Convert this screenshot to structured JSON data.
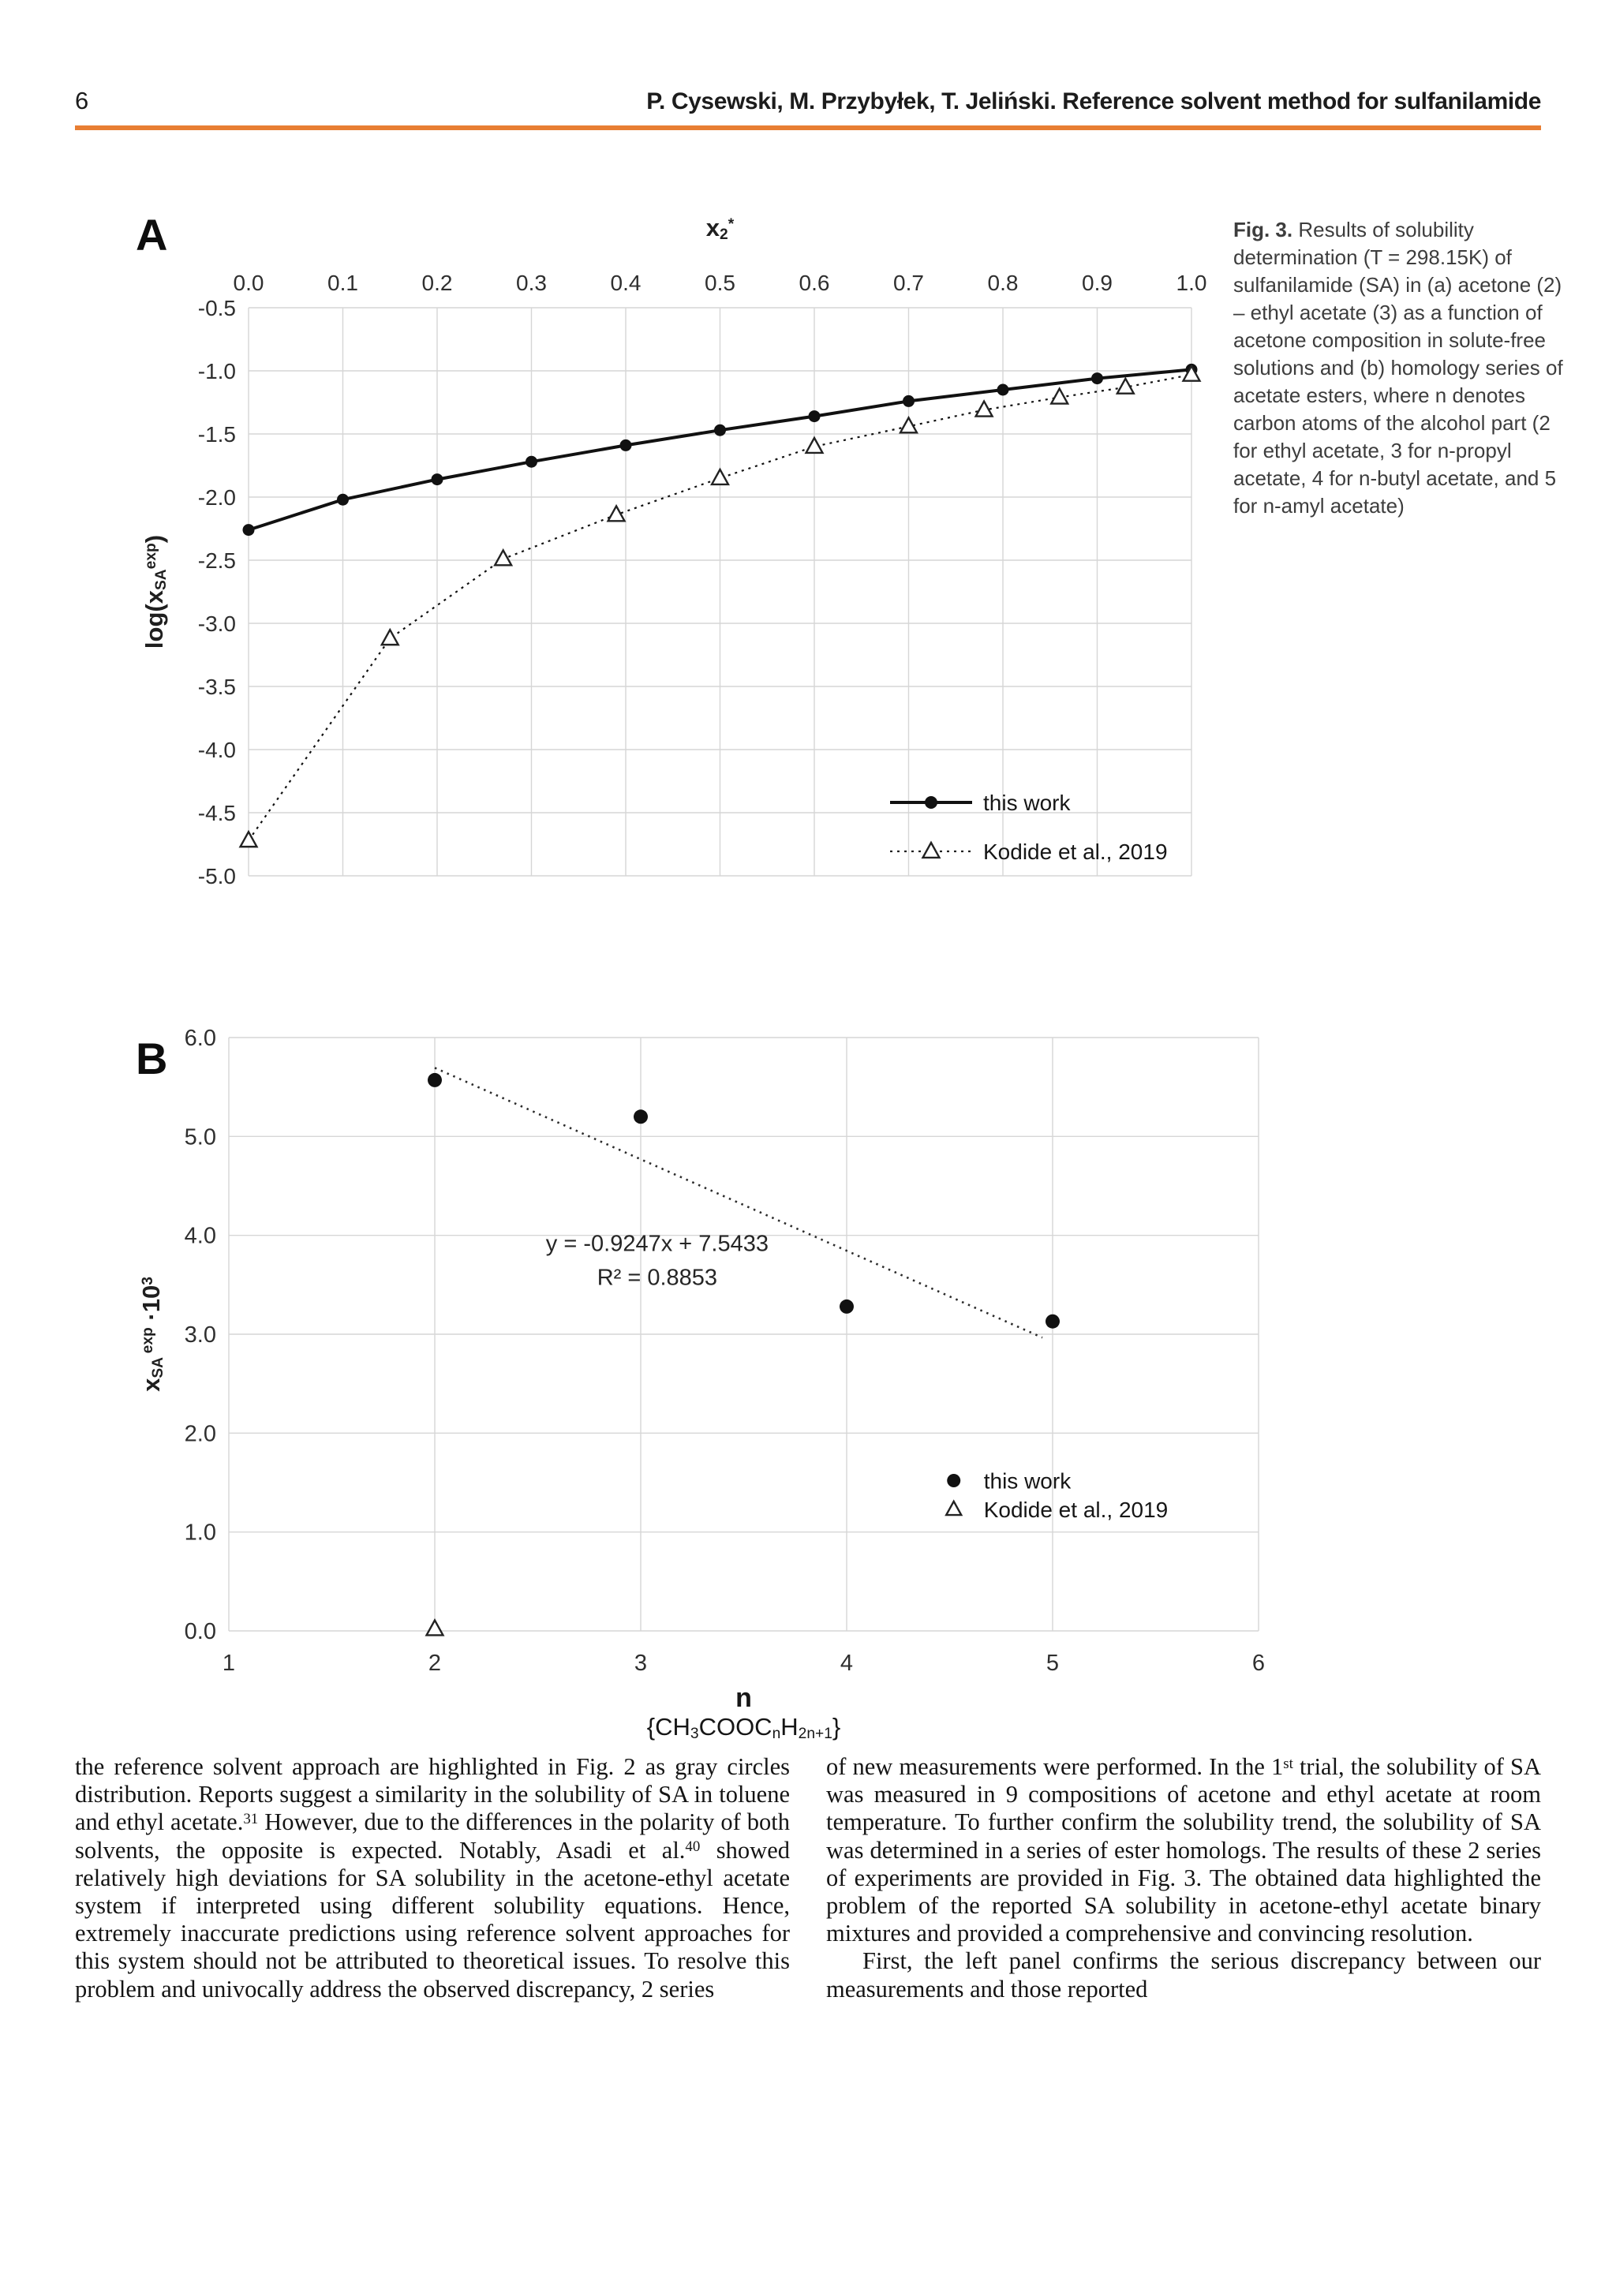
{
  "header": {
    "page_number": "6",
    "running_title": "P. Cysewski, M. Przybyłek, T. Jeliński. Reference solvent method for sulfanilamide",
    "rule_color": "#E87E33"
  },
  "figure": {
    "caption": [
      {
        "t": "Fig. 3.",
        "b": true
      },
      {
        "t": " Results of solubility determination (T = 298.15K) of sulfanilamide (SA) in (a) acetone (2) – ethyl acetate (3) as a function of acetone composition in solute-free solutions and (b) homology series of acetate esters, where n denotes carbon atoms of the alcohol part (2 for ethyl acetate, 3 for n-propyl acetate, 4 for n-butyl acetate, and 5 for n-amyl acetate)"
      }
    ]
  },
  "chart_data": [
    {
      "panel": "A",
      "type": "line",
      "xlabel_rich": [
        {
          "t": "x"
        },
        {
          "t": "2",
          "sub": true
        },
        {
          "t": "*",
          "sup": true
        }
      ],
      "ylabel_rich": [
        {
          "t": "log(x"
        },
        {
          "t": "SA",
          "sub": true
        },
        {
          "t": "exp",
          "sup": true
        },
        {
          "t": ")"
        }
      ],
      "xlim": [
        0.0,
        1.0
      ],
      "ylim": [
        -5.0,
        -0.5
      ],
      "x_ticks": [
        "0.0",
        "0.1",
        "0.2",
        "0.3",
        "0.4",
        "0.5",
        "0.6",
        "0.7",
        "0.8",
        "0.9",
        "1.0"
      ],
      "y_ticks": [
        "-0.5",
        "-1.0",
        "-1.5",
        "-2.0",
        "-2.5",
        "-3.0",
        "-3.5",
        "-4.0",
        "-4.5",
        "-5.0"
      ],
      "grid": true,
      "legend_position": "lower right",
      "series": [
        {
          "name": "this work",
          "marker": "filled-circle",
          "line_style": "solid",
          "x": [
            0.0,
            0.1,
            0.2,
            0.3,
            0.4,
            0.5,
            0.6,
            0.7,
            0.8,
            0.9,
            1.0
          ],
          "y": [
            -2.26,
            -2.02,
            -1.86,
            -1.72,
            -1.59,
            -1.47,
            -1.36,
            -1.24,
            -1.15,
            -1.06,
            -0.99
          ]
        },
        {
          "name": "Kodide et al., 2019",
          "marker": "open-triangle",
          "line_style": "dotted",
          "x": [
            0.0,
            0.15,
            0.27,
            0.39,
            0.5,
            0.6,
            0.7,
            0.78,
            0.86,
            0.93,
            1.0
          ],
          "y": [
            -4.72,
            -3.12,
            -2.49,
            -2.14,
            -1.85,
            -1.6,
            -1.44,
            -1.31,
            -1.21,
            -1.13,
            -1.03
          ]
        }
      ]
    },
    {
      "panel": "B",
      "type": "scatter",
      "xlabel": "n",
      "xlabel_formula_rich": [
        {
          "t": "{CH"
        },
        {
          "t": "3",
          "sub": true
        },
        {
          "t": "COOC"
        },
        {
          "t": "n",
          "sub": true
        },
        {
          "t": "H"
        },
        {
          "t": "2n+1",
          "sub": true
        },
        {
          "t": "}"
        }
      ],
      "ylabel_rich": [
        {
          "t": "x"
        },
        {
          "t": "SA",
          "sub": true
        },
        {
          "t": " exp",
          "sup": true
        },
        {
          "t": " ·10"
        },
        {
          "t": "3",
          "sup": true
        }
      ],
      "xlim": [
        1,
        6
      ],
      "ylim": [
        0,
        6
      ],
      "x_ticks": [
        "1",
        "2",
        "3",
        "4",
        "5",
        "6"
      ],
      "y_ticks": [
        "0.0",
        "1.0",
        "2.0",
        "3.0",
        "4.0",
        "5.0",
        "6.0"
      ],
      "grid": true,
      "series": [
        {
          "name": "this work",
          "marker": "filled-circle",
          "x": [
            2,
            3,
            4,
            5
          ],
          "y": [
            5.57,
            5.2,
            3.28,
            3.13
          ]
        },
        {
          "name": "Kodide et al., 2019",
          "marker": "open-triangle",
          "x": [
            2
          ],
          "y": [
            0.02
          ]
        }
      ],
      "trendline": {
        "style": "dotted",
        "slope": -0.9247,
        "intercept": 7.5433,
        "x_start": 2.0,
        "x_end": 4.95,
        "equation_label": "y = -0.9247x + 7.5433",
        "r2_label": "R² = 0.8853"
      }
    }
  ],
  "body": {
    "left_column": [
      {
        "t": "the reference solvent approach are highlighted in Fig. 2 as gray circles distribution. Reports suggest a similarity in the solubility of SA in toluene and ethyl acetate."
      },
      {
        "t": "31",
        "sup": true
      },
      {
        "t": " However, due to the differences in the polarity of both solvents, the opposite is expected. Notably, Asadi et al."
      },
      {
        "t": "40",
        "sup": true
      },
      {
        "t": " showed relatively high deviations for SA solubility in the acetone-ethyl acetate system if interpreted using different solubility equations. Hence, extremely inaccurate predictions using reference solvent approaches for this system should not be attributed to theoretical issues. To resolve this problem and univocally address the observed discrepancy, 2 series"
      }
    ],
    "right_column_p1": [
      {
        "t": "of new measurements were performed. In the 1"
      },
      {
        "t": "st",
        "sup": true
      },
      {
        "t": " trial, the solubility of SA was measured in 9 compositions of acetone and ethyl acetate at room temperature. To further confirm the solubility trend, the solubility of SA was determined in a series of ester homologs. The results of these 2 series of experiments are provided in Fig. 3. The obtained data highlighted the problem of the reported SA solubility in acetone-ethyl acetate binary mixtures and provided a comprehensive and convincing resolution."
      }
    ],
    "right_column_p2": [
      {
        "t": "First, the left panel confirms the serious discrepancy between our measurements and those reported"
      }
    ]
  }
}
